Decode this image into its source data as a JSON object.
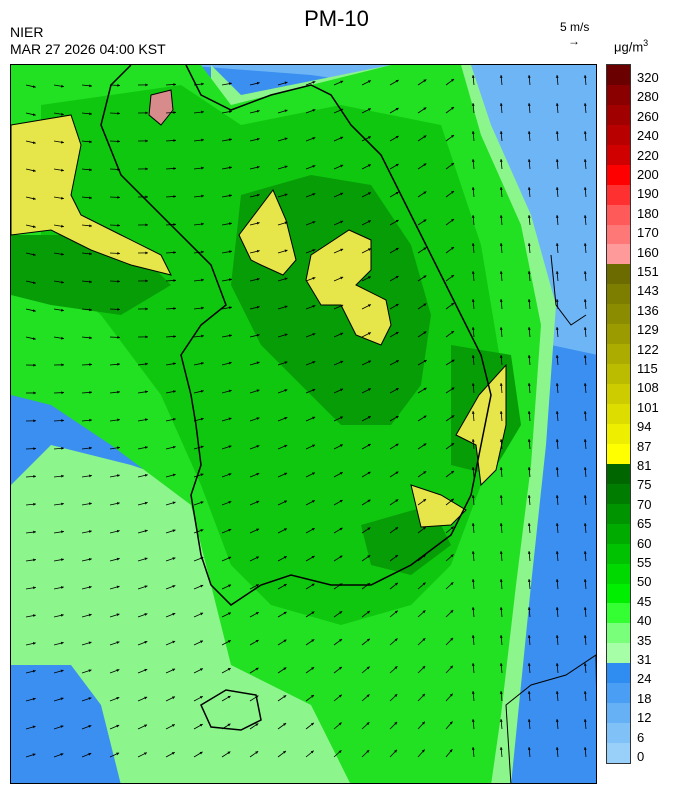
{
  "header": {
    "title": "PM-10",
    "org": "NIER",
    "datetime": "MAR 27 2026 04:00 KST",
    "wind_ref_label": "5 m/s",
    "wind_ref_arrow": "→",
    "unit_base": "μg/m",
    "unit_exp": "3"
  },
  "colorbar": {
    "labels": [
      "320",
      "280",
      "260",
      "240",
      "220",
      "200",
      "190",
      "180",
      "170",
      "160",
      "151",
      "143",
      "136",
      "129",
      "122",
      "115",
      "108",
      "101",
      "94",
      "87",
      "81",
      "75",
      "70",
      "65",
      "60",
      "55",
      "50",
      "45",
      "40",
      "35",
      "31",
      "24",
      "18",
      "12",
      "6",
      "0"
    ],
    "colors": [
      "#6b0000",
      "#8a0000",
      "#a00000",
      "#b80000",
      "#d00000",
      "#ff0000",
      "#ff3030",
      "#ff5a5a",
      "#ff7878",
      "#ff9a9a",
      "#6b6b00",
      "#7d7d00",
      "#8c8c00",
      "#9b9b00",
      "#abab00",
      "#bbbb00",
      "#cccc00",
      "#dddd00",
      "#eeee00",
      "#ffff00",
      "#006600",
      "#007d00",
      "#009400",
      "#00ab00",
      "#00c200",
      "#00d900",
      "#00ee00",
      "#33ff33",
      "#7aff7a",
      "#a6ffa6",
      "#2f8cf0",
      "#4a9ef3",
      "#66b0f5",
      "#80c2f7",
      "#99d0f9"
    ]
  },
  "map": {
    "colors": {
      "sea_low": "#3a8ff0",
      "sea_mid": "#6db5f5",
      "light_green": "#8cf58c",
      "green": "#22e022",
      "mid_green": "#0fc70f",
      "dark_green": "#079d07",
      "yellow": "#e6e64a",
      "hotspot": "#d88b8b"
    }
  }
}
